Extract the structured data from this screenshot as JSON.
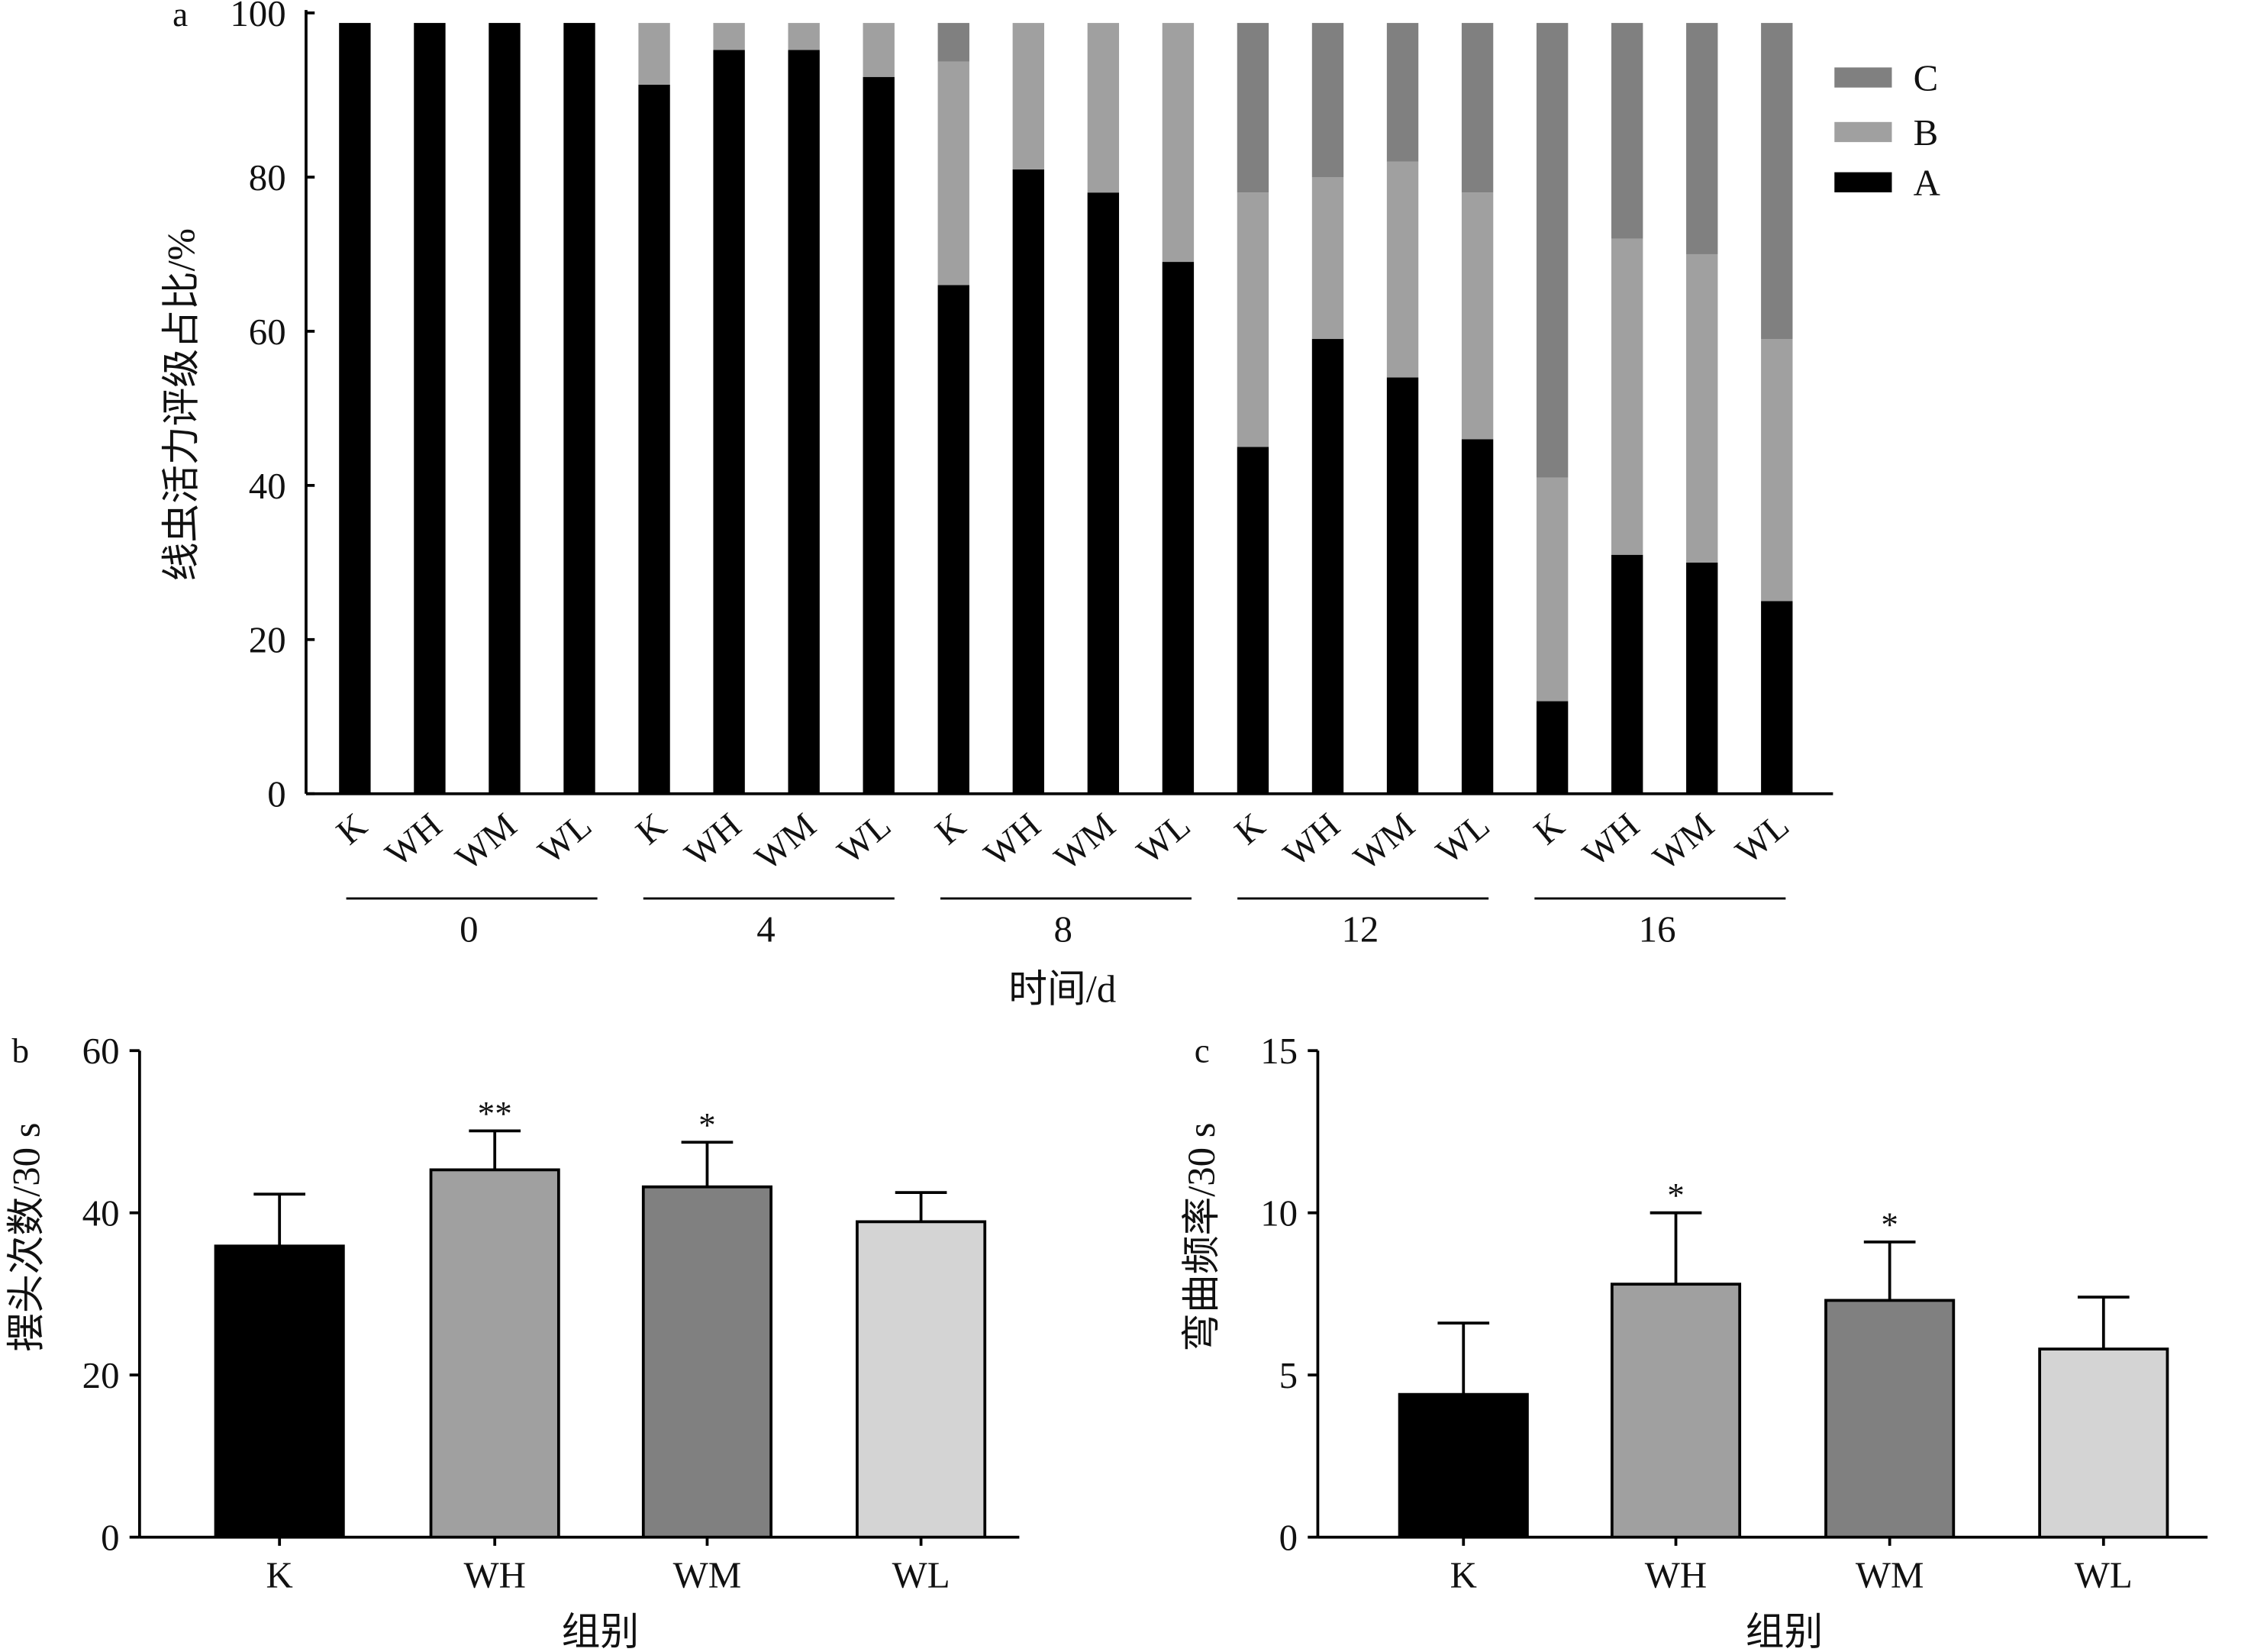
{
  "colors": {
    "A": "#000000",
    "B": "#a0a0a0",
    "C": "#808080",
    "K": "#000000",
    "WH": "#a0a0a0",
    "WM": "#808080",
    "WL": "#d4d4d4"
  },
  "chart_data": [
    {
      "panel": "a",
      "type": "bar",
      "stacked": true,
      "ylabel": "线虫活力评级占比/%",
      "xlabel": "时间/d",
      "ylim": [
        0,
        100
      ],
      "yticks": [
        0,
        20,
        40,
        60,
        80,
        100
      ],
      "groups": [
        "0",
        "4",
        "8",
        "12",
        "16"
      ],
      "categories": [
        "K",
        "WH",
        "WM",
        "WL"
      ],
      "legend": {
        "position": "right",
        "entries": [
          "C",
          "B",
          "A"
        ]
      },
      "series": [
        {
          "name": "A",
          "values": [
            [
              100,
              100,
              100,
              100
            ],
            [
              92,
              96.5,
              96.5,
              93
            ],
            [
              66,
              81,
              78,
              69
            ],
            [
              45,
              59,
              54,
              46
            ],
            [
              12,
              31,
              30,
              25
            ]
          ]
        },
        {
          "name": "B",
          "values": [
            [
              0,
              0,
              0,
              0
            ],
            [
              8,
              3.5,
              3.5,
              7
            ],
            [
              29,
              19,
              22,
              31
            ],
            [
              33,
              21,
              28,
              32
            ],
            [
              29,
              41,
              40,
              34
            ]
          ]
        },
        {
          "name": "C",
          "values": [
            [
              0,
              0,
              0,
              0
            ],
            [
              0,
              0,
              0,
              0
            ],
            [
              5,
              0,
              0,
              0
            ],
            [
              22,
              20,
              18,
              22
            ],
            [
              59,
              28,
              30,
              41
            ]
          ]
        }
      ]
    },
    {
      "panel": "b",
      "type": "bar",
      "ylabel": "摆头次数/30 s",
      "xlabel": "组别",
      "ylim": [
        0,
        60
      ],
      "yticks": [
        0,
        20,
        40,
        60
      ],
      "categories": [
        "K",
        "WH",
        "WM",
        "WL"
      ],
      "values": [
        35.9,
        45.3,
        43.2,
        38.9
      ],
      "errors": [
        6.4,
        4.8,
        5.5,
        3.6
      ],
      "significance": [
        "",
        "**",
        "*",
        ""
      ]
    },
    {
      "panel": "c",
      "type": "bar",
      "ylabel": "弯曲频率/30 s",
      "xlabel": "组别",
      "ylim": [
        0,
        15
      ],
      "yticks": [
        0,
        5,
        10,
        15
      ],
      "categories": [
        "K",
        "WH",
        "WM",
        "WL"
      ],
      "values": [
        4.4,
        7.8,
        7.3,
        5.8
      ],
      "errors": [
        2.2,
        2.2,
        1.8,
        1.6
      ],
      "significance": [
        "",
        "*",
        "*",
        ""
      ]
    }
  ]
}
